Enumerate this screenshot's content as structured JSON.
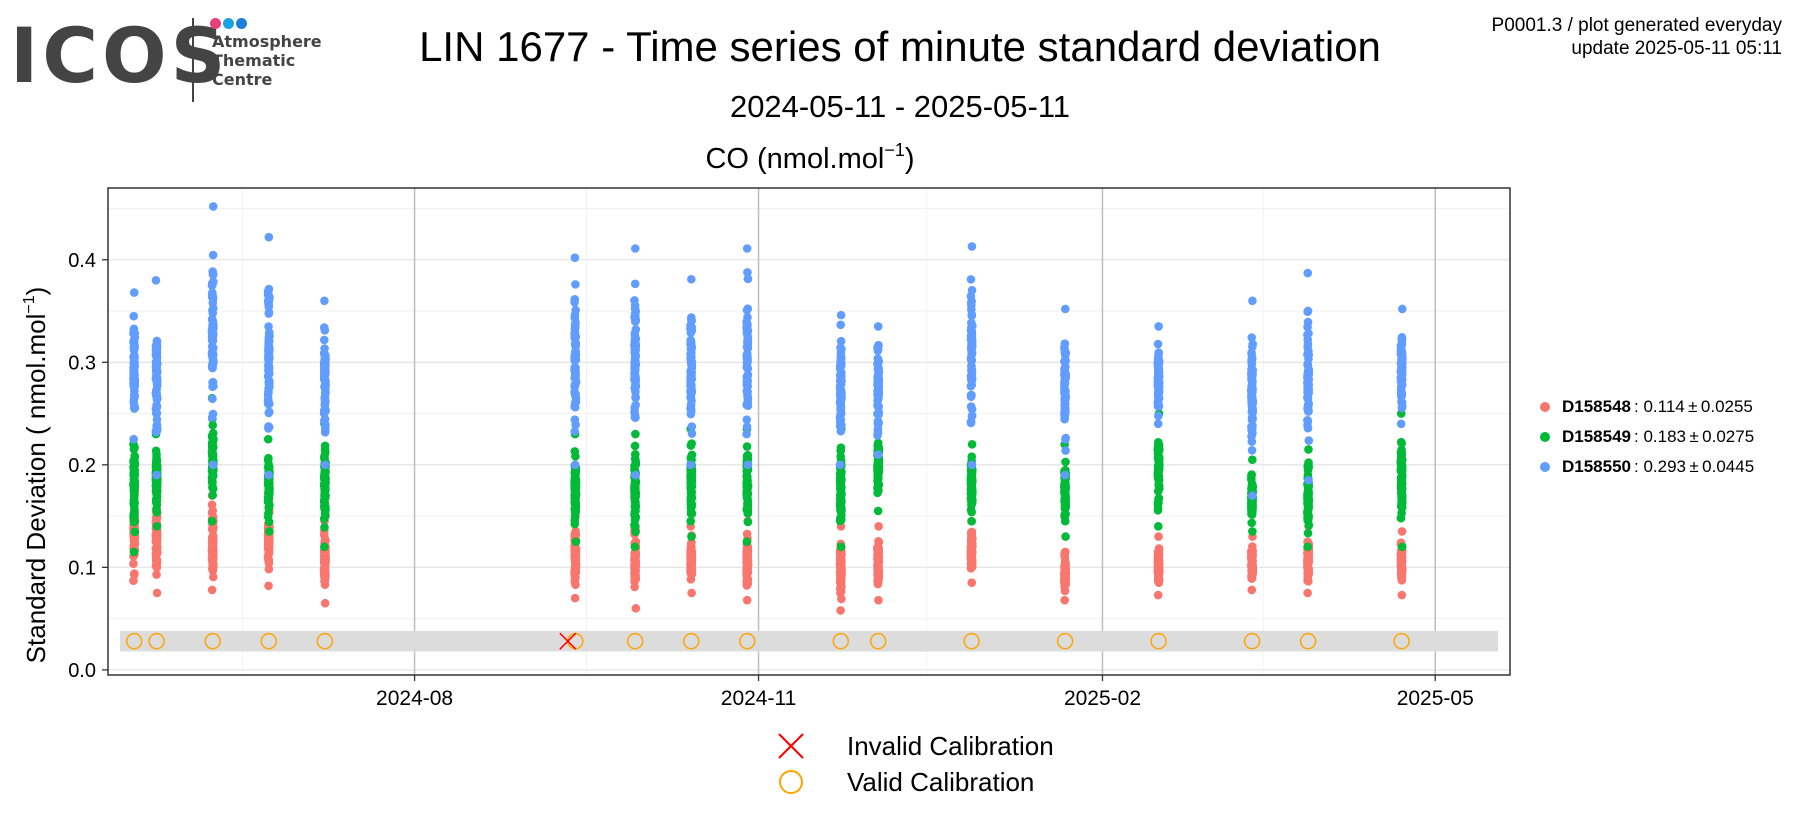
{
  "logo": {
    "wordmark": "ICOS",
    "lines": [
      "Atmosphere",
      "Thematic",
      "Centre"
    ],
    "dot_colors": [
      "#e8417a",
      "#1ba4e4",
      "#1b7fd8"
    ]
  },
  "header": {
    "title": "LIN 1677 - Time series of minute standard deviation",
    "subtitle": "2024-05-11 - 2025-05-11",
    "meta_line1": "P0001.3 / plot generated everyday",
    "meta_line2": "update  2025-05-11 05:11"
  },
  "calib_legend": {
    "invalid_label": "Invalid Calibration",
    "valid_label": "Valid Calibration",
    "invalid_color": "#ff0000",
    "valid_color": "#ffa500"
  },
  "chart_data": {
    "type": "scatter",
    "title_main": "CO (nmol.mol",
    "title_sup": "−1",
    "title_close": ")",
    "ylabel_main": "Standard Deviation ( nmol.mol",
    "ylabel_sup": "−1",
    "ylabel_close": ")",
    "x_range": [
      "2024-05-11",
      "2025-05-21"
    ],
    "ylim": [
      -0.005,
      0.47
    ],
    "yticks": [
      0.0,
      0.1,
      0.2,
      0.3,
      0.4
    ],
    "ytick_labels": [
      "0.0",
      "0.1",
      "0.2",
      "0.3",
      "0.4"
    ],
    "xticks": [
      "2024-08-01",
      "2024-11-01",
      "2025-02-01",
      "2025-05-01"
    ],
    "xtick_labels": [
      "2024-08",
      "2024-11",
      "2025-02",
      "2025-05"
    ],
    "grid": true,
    "legend_position": "right",
    "series": [
      {
        "name": "D158548",
        "stat": "0.114",
        "pm": "0.0255",
        "color": "#f8766d"
      },
      {
        "name": "D158549",
        "stat": "0.183",
        "pm": "0.0275",
        "color": "#00ba38"
      },
      {
        "name": "D158550",
        "stat": "0.293",
        "pm": "0.0445",
        "color": "#619cff"
      }
    ],
    "calibration_sessions": [
      {
        "date": "2024-05-18",
        "valid": true,
        "D158548": [
          0.087,
          0.175
        ],
        "D158549": [
          0.115,
          0.255
        ],
        "D158550": [
          0.225,
          0.368
        ]
      },
      {
        "date": "2024-05-24",
        "valid": true,
        "D158548": [
          0.075,
          0.178
        ],
        "D158549": [
          0.14,
          0.23
        ],
        "D158550": [
          0.19,
          0.38
        ]
      },
      {
        "date": "2024-06-08",
        "valid": true,
        "D158548": [
          0.078,
          0.17
        ],
        "D158549": [
          0.145,
          0.265
        ],
        "D158550": [
          0.2,
          0.452
        ]
      },
      {
        "date": "2024-06-23",
        "valid": true,
        "D158548": [
          0.082,
          0.165
        ],
        "D158549": [
          0.135,
          0.225
        ],
        "D158550": [
          0.19,
          0.422
        ]
      },
      {
        "date": "2024-07-08",
        "valid": true,
        "D158548": [
          0.065,
          0.145
        ],
        "D158549": [
          0.12,
          0.24
        ],
        "D158550": [
          0.2,
          0.36
        ]
      },
      {
        "date": "2024-09-13",
        "valid": true,
        "D158548": [
          0.07,
          0.15
        ],
        "D158549": [
          0.125,
          0.23
        ],
        "D158550": [
          0.2,
          0.402
        ]
      },
      {
        "date": "2024-09-29",
        "valid": true,
        "D158548": [
          0.06,
          0.15
        ],
        "D158549": [
          0.12,
          0.23
        ],
        "D158550": [
          0.19,
          0.411
        ]
      },
      {
        "date": "2024-10-14",
        "valid": true,
        "D158548": [
          0.075,
          0.14
        ],
        "D158549": [
          0.13,
          0.235
        ],
        "D158550": [
          0.2,
          0.381
        ]
      },
      {
        "date": "2024-10-29",
        "valid": true,
        "D158548": [
          0.068,
          0.145
        ],
        "D158549": [
          0.125,
          0.235
        ],
        "D158550": [
          0.2,
          0.411
        ]
      },
      {
        "date": "2024-11-23",
        "valid": true,
        "D158548": [
          0.058,
          0.14
        ],
        "D158549": [
          0.12,
          0.235
        ],
        "D158550": [
          0.2,
          0.346
        ]
      },
      {
        "date": "2024-12-03",
        "valid": true,
        "D158548": [
          0.068,
          0.14
        ],
        "D158549": [
          0.155,
          0.24
        ],
        "D158550": [
          0.21,
          0.335
        ]
      },
      {
        "date": "2024-12-28",
        "valid": true,
        "D158548": [
          0.085,
          0.145
        ],
        "D158549": [
          0.145,
          0.22
        ],
        "D158550": [
          0.2,
          0.413
        ]
      },
      {
        "date": "2025-01-22",
        "valid": true,
        "D158548": [
          0.068,
          0.115
        ],
        "D158549": [
          0.13,
          0.22
        ],
        "D158550": [
          0.19,
          0.352
        ]
      },
      {
        "date": "2025-02-16",
        "valid": true,
        "D158548": [
          0.073,
          0.13
        ],
        "D158549": [
          0.14,
          0.25
        ],
        "D158550": [
          0.24,
          0.335
        ]
      },
      {
        "date": "2025-03-13",
        "valid": true,
        "D158548": [
          0.078,
          0.13
        ],
        "D158549": [
          0.135,
          0.205
        ],
        "D158550": [
          0.17,
          0.36
        ]
      },
      {
        "date": "2025-03-28",
        "valid": true,
        "D158548": [
          0.075,
          0.14
        ],
        "D158549": [
          0.12,
          0.215
        ],
        "D158550": [
          0.185,
          0.387
        ]
      },
      {
        "date": "2025-04-22",
        "valid": true,
        "D158548": [
          0.073,
          0.135
        ],
        "D158549": [
          0.12,
          0.25
        ],
        "D158550": [
          0.24,
          0.352
        ]
      },
      {
        "date": "2024-09-11",
        "valid": false
      }
    ]
  }
}
